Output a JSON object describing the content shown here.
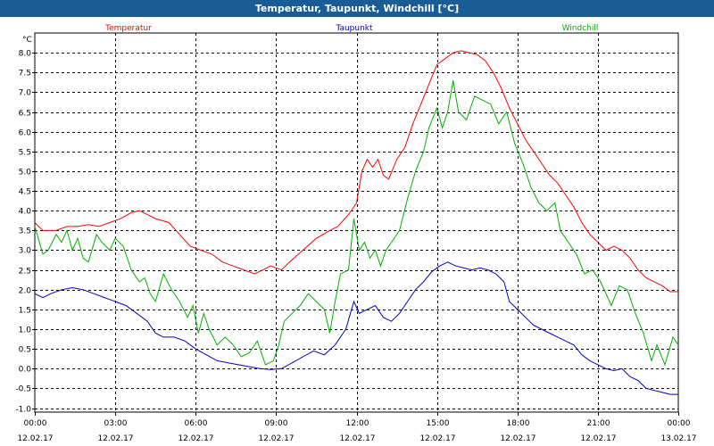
{
  "window": {
    "title": "Temperatur, Taupunkt, Windchill [°C]"
  },
  "chart_data": {
    "type": "line",
    "title": "Temperatur, Taupunkt, Windchill [°C]",
    "ylabel": "°C",
    "xlabel": "",
    "ylim": [
      -1.1,
      8.5
    ],
    "xlim": [
      0,
      24
    ],
    "grid": true,
    "legend_position": "top",
    "y_ticks": [
      -1.0,
      -0.5,
      0.0,
      0.5,
      1.0,
      1.5,
      2.0,
      2.5,
      3.0,
      3.5,
      4.0,
      4.5,
      5.0,
      5.5,
      6.0,
      6.5,
      7.0,
      7.5,
      8.0
    ],
    "x_ticks": [
      {
        "x": 0,
        "time": "00:00",
        "date": "12.02.17"
      },
      {
        "x": 3,
        "time": "03:00",
        "date": "12.02.17"
      },
      {
        "x": 6,
        "time": "06:00",
        "date": "12.02.17"
      },
      {
        "x": 9,
        "time": "09:00",
        "date": "12.02.17"
      },
      {
        "x": 12,
        "time": "12:00",
        "date": "12.02.17"
      },
      {
        "x": 15,
        "time": "15:00",
        "date": "12.02.17"
      },
      {
        "x": 18,
        "time": "18:00",
        "date": "12.02.17"
      },
      {
        "x": 21,
        "time": "21:00",
        "date": "12.02.17"
      },
      {
        "x": 24,
        "time": "00:00",
        "date": "13.02.17"
      }
    ],
    "series": [
      {
        "name": "Temperatur",
        "color": "#ff0000",
        "points": [
          [
            0,
            3.7
          ],
          [
            0.3,
            3.5
          ],
          [
            0.8,
            3.5
          ],
          [
            1.2,
            3.6
          ],
          [
            1.6,
            3.6
          ],
          [
            2.0,
            3.65
          ],
          [
            2.4,
            3.6
          ],
          [
            2.8,
            3.7
          ],
          [
            3.2,
            3.8
          ],
          [
            3.6,
            3.95
          ],
          [
            3.9,
            4.0
          ],
          [
            4.2,
            3.9
          ],
          [
            4.5,
            3.8
          ],
          [
            5.0,
            3.7
          ],
          [
            5.4,
            3.4
          ],
          [
            5.8,
            3.1
          ],
          [
            6.2,
            3.0
          ],
          [
            6.6,
            2.9
          ],
          [
            7.0,
            2.7
          ],
          [
            7.4,
            2.6
          ],
          [
            7.8,
            2.5
          ],
          [
            8.2,
            2.4
          ],
          [
            8.5,
            2.5
          ],
          [
            8.8,
            2.6
          ],
          [
            9.2,
            2.5
          ],
          [
            9.5,
            2.7
          ],
          [
            10.0,
            3.0
          ],
          [
            10.5,
            3.3
          ],
          [
            11.0,
            3.5
          ],
          [
            11.3,
            3.6
          ],
          [
            11.7,
            3.9
          ],
          [
            12.0,
            4.2
          ],
          [
            12.2,
            5.0
          ],
          [
            12.4,
            5.3
          ],
          [
            12.6,
            5.1
          ],
          [
            12.8,
            5.3
          ],
          [
            13.0,
            4.9
          ],
          [
            13.2,
            4.8
          ],
          [
            13.5,
            5.3
          ],
          [
            13.8,
            5.6
          ],
          [
            14.1,
            6.2
          ],
          [
            14.4,
            6.7
          ],
          [
            14.7,
            7.2
          ],
          [
            15.0,
            7.7
          ],
          [
            15.3,
            7.85
          ],
          [
            15.6,
            8.0
          ],
          [
            15.9,
            8.05
          ],
          [
            16.2,
            8.0
          ],
          [
            16.5,
            7.95
          ],
          [
            16.8,
            7.8
          ],
          [
            17.1,
            7.5
          ],
          [
            17.4,
            7.1
          ],
          [
            17.7,
            6.6
          ],
          [
            18.0,
            6.2
          ],
          [
            18.3,
            5.8
          ],
          [
            18.6,
            5.5
          ],
          [
            18.9,
            5.2
          ],
          [
            19.2,
            4.9
          ],
          [
            19.5,
            4.7
          ],
          [
            19.8,
            4.4
          ],
          [
            20.1,
            4.1
          ],
          [
            20.4,
            3.7
          ],
          [
            20.7,
            3.4
          ],
          [
            21.0,
            3.2
          ],
          [
            21.3,
            3.0
          ],
          [
            21.6,
            3.1
          ],
          [
            21.9,
            3.0
          ],
          [
            22.2,
            2.8
          ],
          [
            22.5,
            2.5
          ],
          [
            22.8,
            2.3
          ],
          [
            23.1,
            2.2
          ],
          [
            23.4,
            2.1
          ],
          [
            23.7,
            1.95
          ],
          [
            24.0,
            1.95
          ]
        ]
      },
      {
        "name": "Taupunkt",
        "color": "#0000c0",
        "points": [
          [
            0,
            1.9
          ],
          [
            0.3,
            1.8
          ],
          [
            0.6,
            1.9
          ],
          [
            1.0,
            2.0
          ],
          [
            1.4,
            2.05
          ],
          [
            1.8,
            2.0
          ],
          [
            2.2,
            1.9
          ],
          [
            2.6,
            1.8
          ],
          [
            3.0,
            1.7
          ],
          [
            3.4,
            1.6
          ],
          [
            3.8,
            1.4
          ],
          [
            4.2,
            1.2
          ],
          [
            4.5,
            0.9
          ],
          [
            4.8,
            0.8
          ],
          [
            5.2,
            0.8
          ],
          [
            5.6,
            0.7
          ],
          [
            6.0,
            0.5
          ],
          [
            6.4,
            0.35
          ],
          [
            6.8,
            0.2
          ],
          [
            7.2,
            0.15
          ],
          [
            7.6,
            0.1
          ],
          [
            8.0,
            0.05
          ],
          [
            8.4,
            0.0
          ],
          [
            8.8,
            -0.02
          ],
          [
            9.2,
            0.0
          ],
          [
            9.6,
            0.15
          ],
          [
            10.0,
            0.3
          ],
          [
            10.4,
            0.45
          ],
          [
            10.8,
            0.35
          ],
          [
            11.2,
            0.6
          ],
          [
            11.6,
            1.0
          ],
          [
            11.9,
            1.7
          ],
          [
            12.1,
            1.4
          ],
          [
            12.4,
            1.5
          ],
          [
            12.7,
            1.6
          ],
          [
            13.0,
            1.3
          ],
          [
            13.3,
            1.2
          ],
          [
            13.6,
            1.4
          ],
          [
            13.9,
            1.7
          ],
          [
            14.2,
            2.0
          ],
          [
            14.5,
            2.2
          ],
          [
            14.8,
            2.45
          ],
          [
            15.1,
            2.6
          ],
          [
            15.4,
            2.7
          ],
          [
            15.7,
            2.6
          ],
          [
            16.0,
            2.55
          ],
          [
            16.3,
            2.5
          ],
          [
            16.6,
            2.55
          ],
          [
            16.9,
            2.5
          ],
          [
            17.2,
            2.4
          ],
          [
            17.5,
            2.2
          ],
          [
            17.7,
            1.7
          ],
          [
            18.0,
            1.5
          ],
          [
            18.3,
            1.3
          ],
          [
            18.6,
            1.1
          ],
          [
            18.9,
            1.0
          ],
          [
            19.2,
            0.9
          ],
          [
            19.5,
            0.8
          ],
          [
            19.8,
            0.7
          ],
          [
            20.1,
            0.6
          ],
          [
            20.4,
            0.35
          ],
          [
            20.7,
            0.2
          ],
          [
            21.0,
            0.1
          ],
          [
            21.3,
            0.0
          ],
          [
            21.6,
            -0.05
          ],
          [
            21.9,
            0.0
          ],
          [
            22.2,
            -0.2
          ],
          [
            22.5,
            -0.3
          ],
          [
            22.8,
            -0.5
          ],
          [
            23.1,
            -0.55
          ],
          [
            23.4,
            -0.6
          ],
          [
            23.7,
            -0.65
          ],
          [
            24.0,
            -0.65
          ]
        ]
      },
      {
        "name": "Windchill",
        "color": "#00b000",
        "points": [
          [
            0,
            3.6
          ],
          [
            0.3,
            2.9
          ],
          [
            0.5,
            3.0
          ],
          [
            0.8,
            3.4
          ],
          [
            1.0,
            3.2
          ],
          [
            1.2,
            3.5
          ],
          [
            1.4,
            3.0
          ],
          [
            1.6,
            3.3
          ],
          [
            1.8,
            2.8
          ],
          [
            2.0,
            2.7
          ],
          [
            2.3,
            3.4
          ],
          [
            2.5,
            3.2
          ],
          [
            2.8,
            3.0
          ],
          [
            3.0,
            3.3
          ],
          [
            3.3,
            3.1
          ],
          [
            3.6,
            2.5
          ],
          [
            3.9,
            2.2
          ],
          [
            4.1,
            2.3
          ],
          [
            4.3,
            1.9
          ],
          [
            4.5,
            1.7
          ],
          [
            4.8,
            2.4
          ],
          [
            5.1,
            2.0
          ],
          [
            5.4,
            1.7
          ],
          [
            5.7,
            1.3
          ],
          [
            5.9,
            1.6
          ],
          [
            6.1,
            0.9
          ],
          [
            6.3,
            1.4
          ],
          [
            6.5,
            1.0
          ],
          [
            6.8,
            0.6
          ],
          [
            7.1,
            0.8
          ],
          [
            7.4,
            0.6
          ],
          [
            7.7,
            0.3
          ],
          [
            8.0,
            0.4
          ],
          [
            8.3,
            0.7
          ],
          [
            8.6,
            0.1
          ],
          [
            8.9,
            0.2
          ],
          [
            9.1,
            0.6
          ],
          [
            9.3,
            1.2
          ],
          [
            9.6,
            1.4
          ],
          [
            9.9,
            1.6
          ],
          [
            10.2,
            1.9
          ],
          [
            10.5,
            1.7
          ],
          [
            10.8,
            1.5
          ],
          [
            11.0,
            0.9
          ],
          [
            11.2,
            1.7
          ],
          [
            11.4,
            2.4
          ],
          [
            11.7,
            2.5
          ],
          [
            11.9,
            3.8
          ],
          [
            12.1,
            3.0
          ],
          [
            12.3,
            3.2
          ],
          [
            12.5,
            2.8
          ],
          [
            12.7,
            3.0
          ],
          [
            12.9,
            2.6
          ],
          [
            13.1,
            3.0
          ],
          [
            13.3,
            3.2
          ],
          [
            13.6,
            3.5
          ],
          [
            13.9,
            4.3
          ],
          [
            14.2,
            5.0
          ],
          [
            14.5,
            5.5
          ],
          [
            14.7,
            6.1
          ],
          [
            15.0,
            6.6
          ],
          [
            15.2,
            6.1
          ],
          [
            15.4,
            6.5
          ],
          [
            15.6,
            7.3
          ],
          [
            15.8,
            6.5
          ],
          [
            16.1,
            6.3
          ],
          [
            16.4,
            6.9
          ],
          [
            16.7,
            6.8
          ],
          [
            17.0,
            6.7
          ],
          [
            17.3,
            6.2
          ],
          [
            17.6,
            6.5
          ],
          [
            17.9,
            5.7
          ],
          [
            18.2,
            5.2
          ],
          [
            18.5,
            4.6
          ],
          [
            18.8,
            4.2
          ],
          [
            19.1,
            4.0
          ],
          [
            19.4,
            4.2
          ],
          [
            19.6,
            3.5
          ],
          [
            19.9,
            3.2
          ],
          [
            20.2,
            2.9
          ],
          [
            20.5,
            2.4
          ],
          [
            20.8,
            2.5
          ],
          [
            21.1,
            2.2
          ],
          [
            21.3,
            1.9
          ],
          [
            21.5,
            1.6
          ],
          [
            21.8,
            2.1
          ],
          [
            22.1,
            2.0
          ],
          [
            22.4,
            1.4
          ],
          [
            22.7,
            0.9
          ],
          [
            23.0,
            0.2
          ],
          [
            23.2,
            0.6
          ],
          [
            23.5,
            0.1
          ],
          [
            23.8,
            0.8
          ],
          [
            24.0,
            0.6
          ]
        ]
      }
    ]
  }
}
